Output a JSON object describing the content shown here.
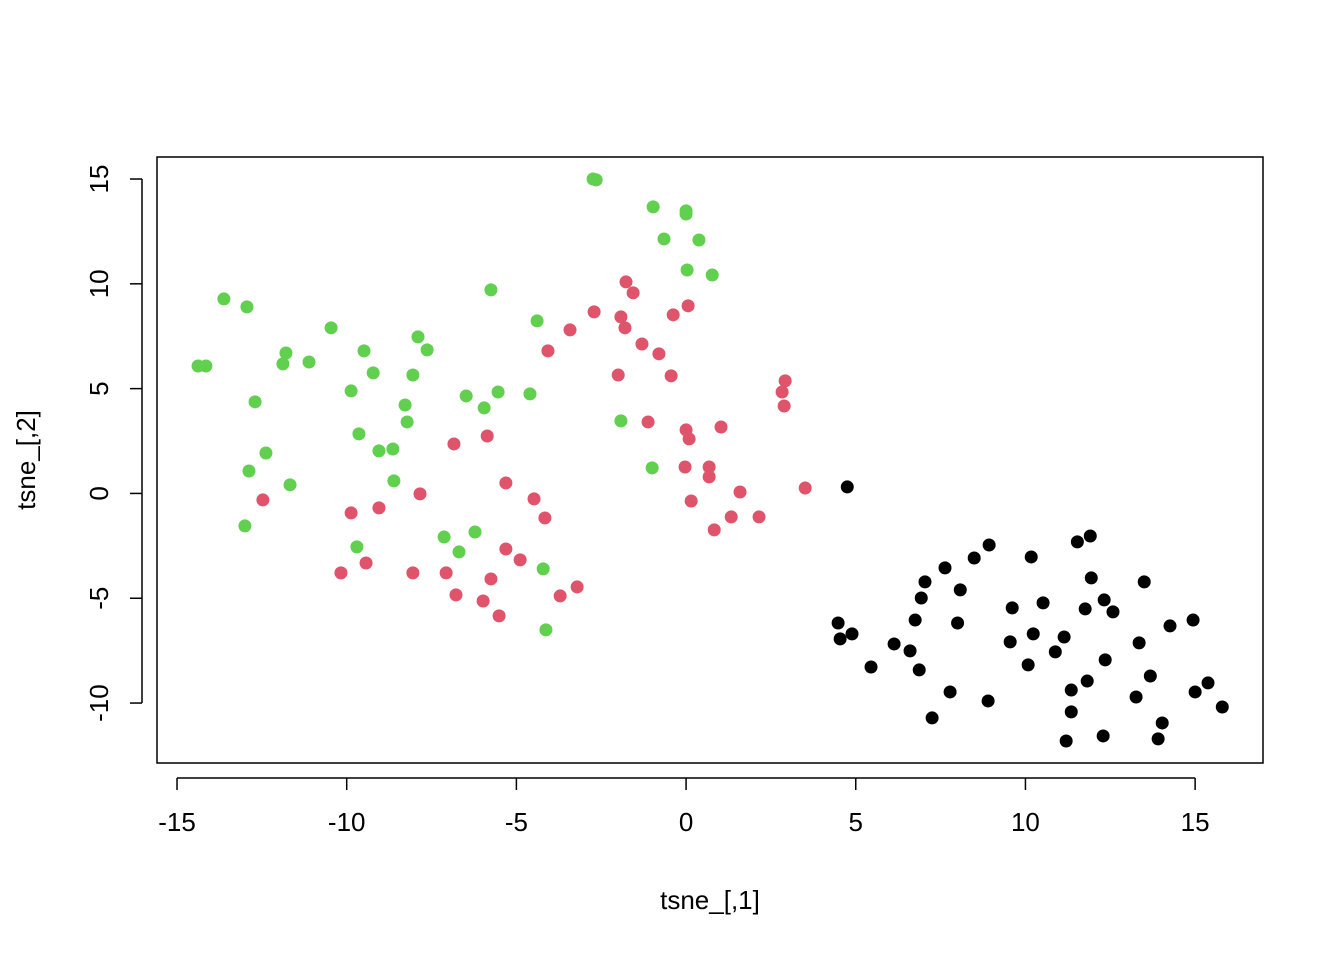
{
  "chart_data": {
    "type": "scatter",
    "x_label": "tsne_[,1]",
    "y_label": "tsne_[,2]",
    "xlim": [
      -15.59,
      17.0
    ],
    "ylim": [
      -12.86,
      16.05
    ],
    "xticks": [
      -15,
      -10,
      -5,
      0,
      5,
      10,
      15
    ],
    "yticks": [
      -10,
      -5,
      0,
      5,
      10,
      15
    ],
    "series": [
      {
        "color": "#000000",
        "x": [
          4.75,
          11.91,
          11.53,
          8.93,
          8.49,
          10.17,
          7.63,
          11.94,
          13.5,
          7.04,
          8.08,
          6.93,
          12.32,
          10.52,
          9.61,
          11.76,
          12.58,
          14.94,
          14.26,
          4.48,
          6.75,
          8.0,
          4.89,
          4.54,
          10.23,
          11.14,
          9.55,
          13.35,
          6.13,
          6.6,
          10.88,
          12.35,
          10.08,
          5.45,
          6.87,
          13.68,
          11.82,
          15.38,
          11.35,
          15.0,
          7.78,
          13.26,
          8.9,
          15.8,
          7.25,
          11.35,
          14.03,
          12.29,
          13.91,
          11.2
        ],
        "values": [
          0.31,
          -2.03,
          -2.31,
          -2.46,
          -3.08,
          -3.03,
          -3.55,
          -4.03,
          -4.22,
          -4.22,
          -4.6,
          -4.99,
          -5.08,
          -5.22,
          -5.46,
          -5.51,
          -5.65,
          -6.04,
          -6.32,
          -6.18,
          -6.04,
          -6.18,
          -6.7,
          -6.94,
          -6.7,
          -6.85,
          -7.08,
          -7.13,
          -7.18,
          -7.51,
          -7.56,
          -7.94,
          -8.18,
          -8.28,
          -8.42,
          -8.71,
          -8.95,
          -9.04,
          -9.38,
          -9.47,
          -9.47,
          -9.71,
          -9.9,
          -10.19,
          -10.71,
          -10.42,
          -10.95,
          -11.57,
          -11.71,
          -11.81
        ]
      },
      {
        "color": "#DF536B",
        "x": [
          -1.77,
          -1.56,
          -2.71,
          -1.92,
          -1.8,
          0.06,
          -0.38,
          -3.42,
          -4.07,
          -1.3,
          -0.8,
          -2.0,
          -0.44,
          2.92,
          2.83,
          2.89,
          -1.12,
          0.0,
          0.09,
          1.03,
          -6.84,
          -5.86,
          -0.03,
          0.68,
          0.68,
          1.59,
          3.51,
          0.15,
          1.33,
          2.15,
          0.83,
          -12.47,
          -7.84,
          -5.31,
          -4.48,
          -4.16,
          -9.05,
          -9.87,
          -5.31,
          -4.89,
          -10.17,
          -9.43,
          -8.05,
          -7.07,
          -5.75,
          -3.21,
          -3.71,
          -6.78,
          -5.98,
          -5.51
        ],
        "values": [
          10.09,
          9.57,
          8.66,
          8.42,
          7.9,
          8.95,
          8.52,
          7.8,
          6.8,
          7.13,
          6.66,
          5.65,
          5.61,
          5.37,
          4.84,
          4.17,
          3.41,
          3.03,
          2.6,
          3.17,
          2.36,
          2.74,
          1.26,
          1.26,
          0.79,
          0.07,
          0.26,
          -0.36,
          -1.12,
          -1.12,
          -1.74,
          -0.31,
          -0.02,
          0.5,
          -0.26,
          -1.17,
          -0.69,
          -0.93,
          -2.65,
          -3.17,
          -3.79,
          -3.32,
          -3.79,
          -3.79,
          -4.08,
          -4.46,
          -4.89,
          -4.84,
          -5.13,
          -5.84
        ]
      },
      {
        "color": "#61D04F",
        "x": [
          -2.65,
          -2.74,
          -0.97,
          0.0,
          0.0,
          -0.65,
          0.38,
          0.03,
          0.77,
          -13.62,
          -12.94,
          -5.75,
          -10.46,
          -4.39,
          -7.9,
          -7.63,
          -9.49,
          -11.79,
          -11.88,
          -11.11,
          -14.38,
          -14.15,
          -9.22,
          -8.05,
          -9.87,
          -12.7,
          -6.48,
          -5.54,
          -4.6,
          -5.95,
          -8.28,
          -8.22,
          -1.92,
          -9.64,
          -9.05,
          -8.64,
          -12.38,
          -12.88,
          -1.0,
          -11.67,
          -8.61,
          -13.0,
          -9.7,
          -7.13,
          -6.69,
          -6.22,
          -4.21,
          -4.13
        ],
        "values": [
          14.96,
          15.0,
          13.67,
          13.48,
          13.33,
          12.14,
          12.09,
          10.66,
          10.42,
          9.28,
          8.9,
          9.71,
          7.9,
          8.23,
          7.47,
          6.85,
          6.8,
          6.7,
          6.18,
          6.27,
          6.08,
          6.08,
          5.75,
          5.65,
          4.89,
          4.37,
          4.65,
          4.84,
          4.75,
          4.08,
          4.22,
          3.41,
          3.46,
          2.84,
          2.03,
          2.12,
          1.93,
          1.07,
          1.22,
          0.41,
          0.6,
          -1.55,
          -2.55,
          -2.08,
          -2.79,
          -1.84,
          -3.6,
          -6.51
        ]
      }
    ]
  }
}
